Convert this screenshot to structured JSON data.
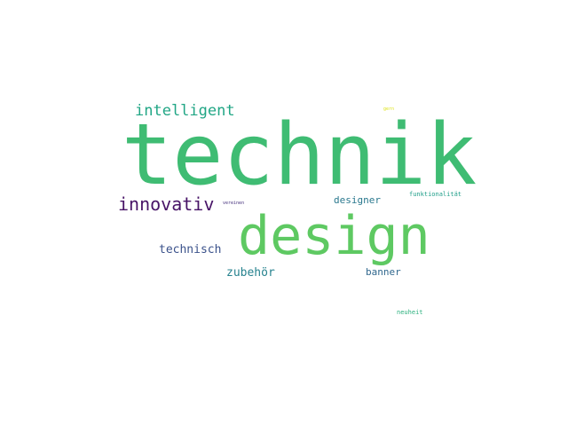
{
  "words": [
    {
      "key": "technik",
      "text": "technik",
      "color": "#3fbc73"
    },
    {
      "key": "design",
      "text": "design",
      "color": "#5ec962"
    },
    {
      "key": "intelligent",
      "text": "intelligent",
      "color": "#21a685"
    },
    {
      "key": "innovativ",
      "text": "innovativ",
      "color": "#481467"
    },
    {
      "key": "technisch",
      "text": "technisch",
      "color": "#3b528b"
    },
    {
      "key": "zubehor",
      "text": "zubehör",
      "color": "#26828e"
    },
    {
      "key": "designer",
      "text": "designer",
      "color": "#2a788e"
    },
    {
      "key": "banner",
      "text": "banner",
      "color": "#31688e"
    },
    {
      "key": "funktionalitat",
      "text": "funktionalität",
      "color": "#1f9e89"
    },
    {
      "key": "vereinen",
      "text": "vereinen",
      "color": "#46327e"
    },
    {
      "key": "neuheit",
      "text": "neuheit",
      "color": "#2cb17e"
    },
    {
      "key": "gern",
      "text": "gern",
      "color": "#dde318"
    }
  ]
}
